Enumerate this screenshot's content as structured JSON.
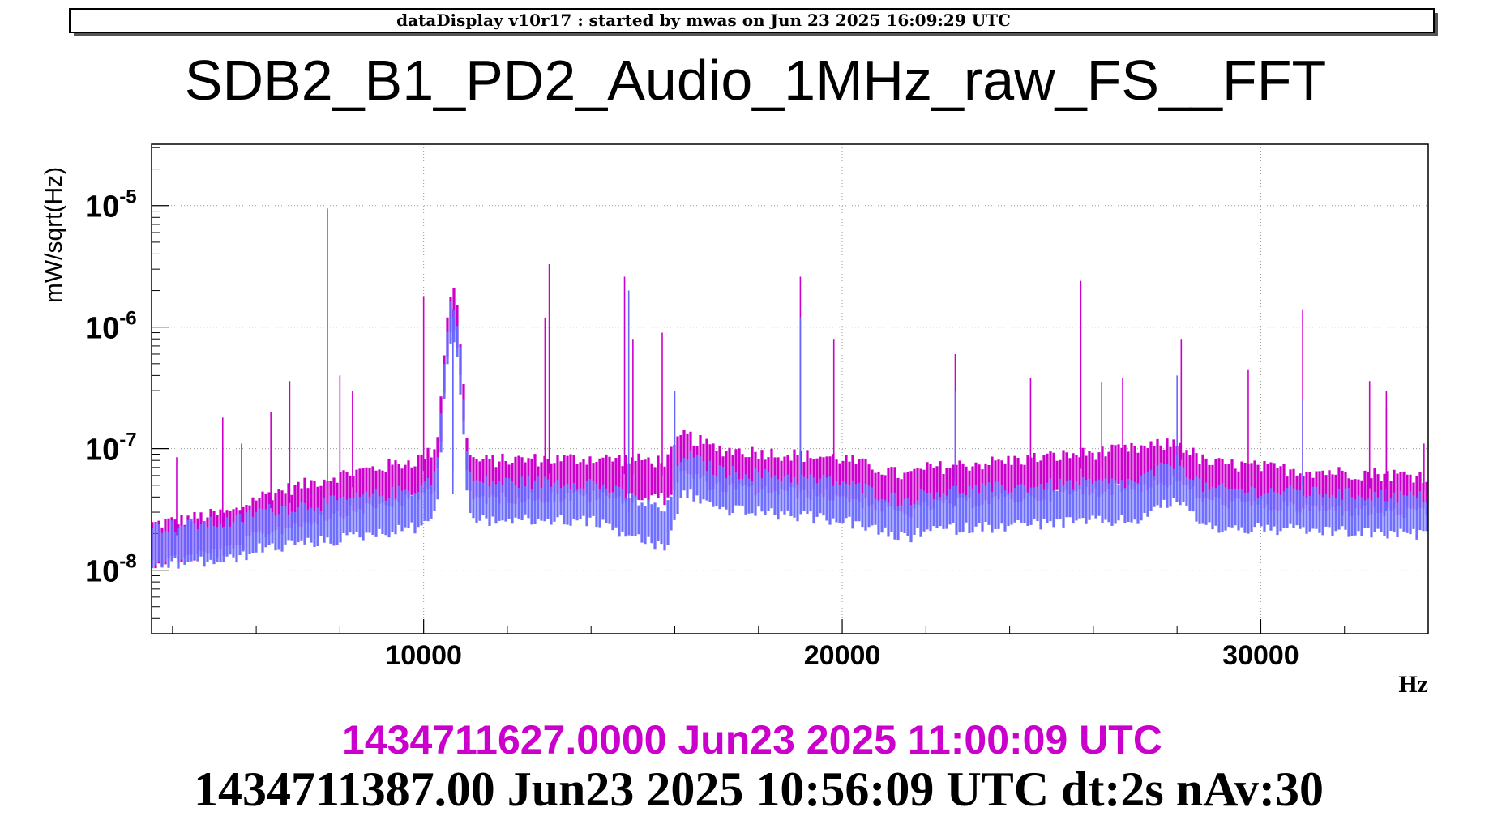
{
  "header": {
    "text": "dataDisplay v10r17 : started by mwas on Jun 23 2025 16:09:29 UTC"
  },
  "chart_data": {
    "type": "line",
    "title": "SDB2_B1_PD2_Audio_1MHz_raw_FS__FFT",
    "xlabel": "Hz",
    "ylabel": "mW/sqrt(Hz)",
    "xlim": [
      3500,
      34000
    ],
    "ylim": [
      3e-09,
      3.2e-05
    ],
    "yscale": "log",
    "grid": true,
    "x_ticks": [
      10000,
      20000,
      30000
    ],
    "x_tick_labels": [
      "10000",
      "20000",
      "30000"
    ],
    "y_ticks": [
      1e-08,
      1e-07,
      1e-06,
      1e-05
    ],
    "y_tick_labels": [
      {
        "base": "10",
        "exp": "-8"
      },
      {
        "base": "10",
        "exp": "-7"
      },
      {
        "base": "10",
        "exp": "-6"
      },
      {
        "base": "10",
        "exp": "-5"
      }
    ],
    "series": [
      {
        "color": "#cc00cc",
        "baseline": [
          [
            3500,
            1.8e-08
          ],
          [
            5500,
            2.3e-08
          ],
          [
            6000,
            3e-08
          ],
          [
            8000,
            4.6e-08
          ],
          [
            9800,
            6e-08
          ],
          [
            10300,
            7.5e-08
          ],
          [
            11000,
            6e-08
          ],
          [
            14000,
            6.3e-08
          ],
          [
            15800,
            6e-08
          ],
          [
            16200,
            1e-07
          ],
          [
            17000,
            7.5e-08
          ],
          [
            20000,
            6.3e-08
          ],
          [
            21500,
            4.5e-08
          ],
          [
            22000,
            5.2e-08
          ],
          [
            25000,
            6.5e-08
          ],
          [
            27000,
            7.5e-08
          ],
          [
            28000,
            8.5e-08
          ],
          [
            28700,
            5.8e-08
          ],
          [
            31000,
            5e-08
          ],
          [
            34000,
            4.5e-08
          ]
        ],
        "peaks": [
          [
            4100,
            8.5e-08
          ],
          [
            5200,
            1.8e-07
          ],
          [
            5650,
            1.1e-07
          ],
          [
            6350,
            2e-07
          ],
          [
            6800,
            3.6e-07
          ],
          [
            7700,
            9.3e-06
          ],
          [
            8000,
            4e-07
          ],
          [
            8300,
            3e-07
          ],
          [
            10000,
            1.8e-06
          ],
          [
            10700,
            1.4e-06
          ],
          [
            12900,
            1.2e-06
          ],
          [
            13000,
            3.3e-06
          ],
          [
            14800,
            2.6e-06
          ],
          [
            15000,
            8e-07
          ],
          [
            15700,
            9e-07
          ],
          [
            19000,
            2.6e-06
          ],
          [
            19800,
            8e-07
          ],
          [
            22700,
            6e-07
          ],
          [
            24500,
            3.8e-07
          ],
          [
            25700,
            2.4e-06
          ],
          [
            26200,
            3.5e-07
          ],
          [
            26700,
            3.8e-07
          ],
          [
            28100,
            8e-07
          ],
          [
            29700,
            4.5e-07
          ],
          [
            31000,
            1.4e-06
          ],
          [
            32600,
            3.6e-07
          ],
          [
            33000,
            3e-07
          ],
          [
            33900,
            1.1e-07
          ]
        ]
      },
      {
        "color": "#6666ff",
        "baseline": [
          [
            3500,
            1.7e-08
          ],
          [
            5500,
            1.9e-08
          ],
          [
            6000,
            2.3e-08
          ],
          [
            8000,
            2.8e-08
          ],
          [
            9800,
            3.5e-08
          ],
          [
            10300,
            4.5e-08
          ],
          [
            11000,
            4e-08
          ],
          [
            14000,
            4e-08
          ],
          [
            15800,
            2.3e-08
          ],
          [
            16200,
            7e-08
          ],
          [
            17000,
            5e-08
          ],
          [
            20000,
            4e-08
          ],
          [
            21500,
            2.8e-08
          ],
          [
            22000,
            3.3e-08
          ],
          [
            25000,
            3.8e-08
          ],
          [
            27000,
            4e-08
          ],
          [
            28000,
            6e-08
          ],
          [
            28700,
            3.5e-08
          ],
          [
            31000,
            3.3e-08
          ],
          [
            34000,
            3e-08
          ]
        ],
        "peaks": [
          [
            7700,
            9.5e-06
          ],
          [
            10700,
            1.2e-06
          ],
          [
            14900,
            2e-06
          ],
          [
            16000,
            3e-07
          ],
          [
            19000,
            1.2e-06
          ],
          [
            22700,
            3e-07
          ],
          [
            28000,
            4e-07
          ],
          [
            31000,
            2.5e-07
          ],
          [
            33000,
            2.2e-07
          ]
        ]
      }
    ]
  },
  "footer": {
    "line1": "1434711627.0000 Jun23 2025 11:00:09 UTC",
    "line2": "1434711387.00 Jun23 2025 10:56:09 UTC dt:2s nAv:30",
    "line1_color": "#cc00cc",
    "line2_color": "#000000"
  }
}
